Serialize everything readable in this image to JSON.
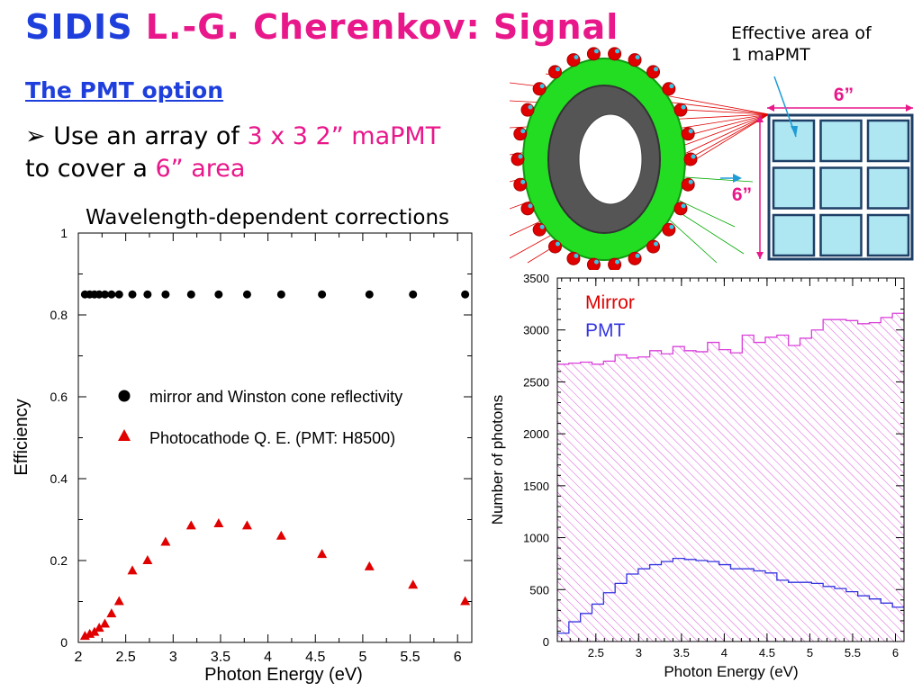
{
  "slide": {
    "title_part1": "SIDIS ",
    "title_part2": "L.-G. Cherenkov: Signal",
    "subtitle": "The PMT option",
    "bullet_marker": "➢",
    "bullet_text1": " Use an array of ",
    "bullet_highlight1": "3 x 3 2” maPMT",
    "bullet_text2": "to cover a ",
    "bullet_highlight2": "6” area",
    "eff_note_line1": "Effective area of",
    "eff_note_line2": "1 maPMT",
    "pmt_dim_top": "6”",
    "pmt_dim_side": "6”",
    "left_chart_title": "Wavelength-dependent corrections"
  },
  "colors": {
    "title_blue": "#1f3fdc",
    "title_pink": "#e8178a",
    "mirror_red": "#e00000",
    "pmt_blue": "#3535e0",
    "hist_magenta": "#d940d9",
    "pmt_cell_fill": "#aee6f2",
    "pmt_frame": "#1e3f66"
  },
  "chart_data": [
    {
      "type": "scatter",
      "title": "Wavelength-dependent corrections",
      "xlabel": "Photon Energy (eV)",
      "ylabel": "Efficiency",
      "xlim": [
        2,
        6.15
      ],
      "ylim": [
        0,
        1
      ],
      "xticks": [
        "2",
        "2.5",
        "3",
        "3.5",
        "4",
        "4.5",
        "5",
        "5.5",
        "6"
      ],
      "yticks": [
        "0",
        "0.2",
        "0.4",
        "0.6",
        "0.8",
        "1"
      ],
      "legend_position": "center-right",
      "series": [
        {
          "name": "mirror and Winston cone reflectivity",
          "marker": "circle",
          "color": "#000000",
          "x": [
            2.07,
            2.12,
            2.17,
            2.22,
            2.28,
            2.35,
            2.43,
            2.57,
            2.73,
            2.92,
            3.19,
            3.48,
            3.78,
            4.14,
            4.57,
            5.07,
            5.53,
            6.08
          ],
          "y": [
            0.85,
            0.85,
            0.85,
            0.85,
            0.85,
            0.85,
            0.85,
            0.85,
            0.85,
            0.85,
            0.85,
            0.85,
            0.85,
            0.85,
            0.85,
            0.85,
            0.85,
            0.85
          ]
        },
        {
          "name": "Photocathode Q. E. (PMT: H8500)",
          "marker": "triangle",
          "color": "#e00000",
          "x": [
            2.07,
            2.12,
            2.17,
            2.22,
            2.28,
            2.35,
            2.43,
            2.57,
            2.73,
            2.92,
            3.19,
            3.48,
            3.78,
            4.14,
            4.57,
            5.07,
            5.53,
            6.08
          ],
          "y": [
            0.015,
            0.02,
            0.025,
            0.035,
            0.045,
            0.07,
            0.1,
            0.175,
            0.2,
            0.245,
            0.285,
            0.29,
            0.285,
            0.26,
            0.215,
            0.185,
            0.14,
            0.1
          ]
        }
      ]
    },
    {
      "type": "area",
      "xlabel": "Photon Energy (eV)",
      "ylabel": "Number of photons",
      "xlim": [
        2.05,
        6.1
      ],
      "ylim": [
        0,
        3500
      ],
      "xticks": [
        "2.5",
        "3",
        "3.5",
        "4",
        "4.5",
        "5",
        "5.5",
        "6"
      ],
      "yticks": [
        "0",
        "500",
        "1000",
        "1500",
        "2000",
        "2500",
        "3000",
        "3500"
      ],
      "legend_position": "top-left",
      "bin_edges": [
        2.05,
        2.185,
        2.32,
        2.455,
        2.59,
        2.725,
        2.86,
        2.995,
        3.13,
        3.265,
        3.4,
        3.535,
        3.67,
        3.805,
        3.94,
        4.075,
        4.21,
        4.345,
        4.48,
        4.615,
        4.75,
        4.885,
        5.02,
        5.155,
        5.29,
        5.425,
        5.56,
        5.695,
        5.83,
        5.965,
        6.1
      ],
      "series": [
        {
          "name": "Mirror",
          "color": "#d940d9",
          "style": "hatched",
          "values": [
            2670,
            2680,
            2690,
            2670,
            2700,
            2760,
            2730,
            2740,
            2800,
            2770,
            2840,
            2800,
            2790,
            2880,
            2810,
            2780,
            2950,
            2880,
            2930,
            2950,
            2850,
            2920,
            3000,
            3100,
            3100,
            3090,
            3060,
            3070,
            3120,
            3160
          ]
        },
        {
          "name": "PMT",
          "color": "#3535e0",
          "style": "line",
          "values": [
            80,
            190,
            270,
            360,
            470,
            560,
            650,
            700,
            740,
            770,
            800,
            790,
            780,
            770,
            740,
            700,
            700,
            680,
            660,
            590,
            570,
            570,
            560,
            530,
            510,
            480,
            440,
            410,
            370,
            330
          ]
        }
      ]
    }
  ]
}
